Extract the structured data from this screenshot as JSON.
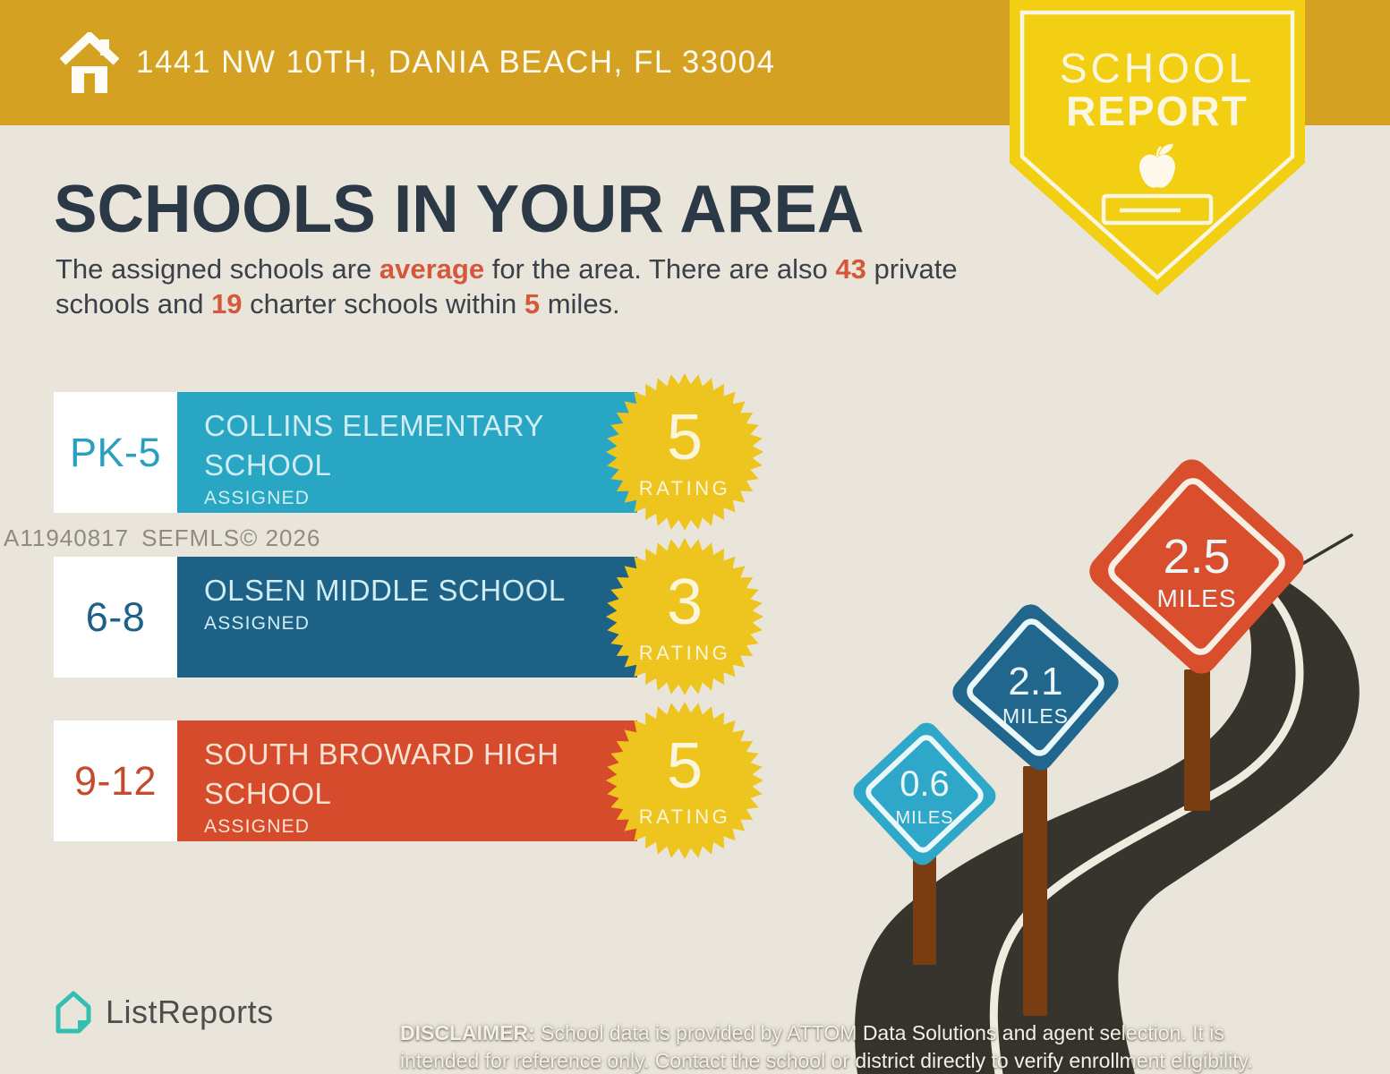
{
  "header": {
    "address": "1441 NW 10TH, DANIA BEACH, FL 33004",
    "icon": "home-icon",
    "bg_color": "#D4A122"
  },
  "badge": {
    "line1": "SCHOOL",
    "line2": "REPORT",
    "icon": "apple-on-book-icon",
    "color": "#F2CF12"
  },
  "title": "SCHOOLS IN YOUR AREA",
  "intro": {
    "t1": "The assigned schools are ",
    "a1": "average",
    "t2": " for the area. There are also ",
    "a2": "43",
    "t3": " private schools and ",
    "a3": "19",
    "t4": " charter schools within ",
    "a4": "5",
    "t5": " miles.",
    "accent_color": "#D4583A"
  },
  "watermark": {
    "id": "A11940817",
    "source": "SEFMLS© 2026"
  },
  "schools": [
    {
      "grades": "PK-5",
      "name": "COLLINS ELEMENTARY SCHOOL",
      "status": "ASSIGNED",
      "rating": "5",
      "rating_label": "RATING",
      "bar_color": "#2AA6C5"
    },
    {
      "grades": "6-8",
      "name": "OLSEN MIDDLE SCHOOL",
      "status": "ASSIGNED",
      "rating": "3",
      "rating_label": "RATING",
      "bar_color": "#1D6187"
    },
    {
      "grades": "9-12",
      "name": "SOUTH BROWARD HIGH SCHOOL",
      "status": "ASSIGNED",
      "rating": "5",
      "rating_label": "RATING",
      "bar_color": "#D64B2B"
    }
  ],
  "distance_signs": [
    {
      "distance": "0.6",
      "unit": "MILES",
      "color": "#2FA7C8"
    },
    {
      "distance": "2.1",
      "unit": "MILES",
      "color": "#20668D"
    },
    {
      "distance": "2.5",
      "unit": "MILES",
      "color": "#D94E2C"
    }
  ],
  "illustration_colors": {
    "road": "#37332D",
    "road_line": "#EFEBDF",
    "sign_post": "#7A3D12",
    "starburst": "#EEC41E",
    "background": "#E9E5DA"
  },
  "footer": {
    "brand": "ListReports",
    "logo_icon": "listreports-house-icon",
    "disclaimer_label": "DISCLAIMER:",
    "disclaimer_text": " School data is provided by ATTOM Data Solutions and agent selection. It is intended for reference only. Contact the school or district directly to verify enrollment eligibility."
  }
}
